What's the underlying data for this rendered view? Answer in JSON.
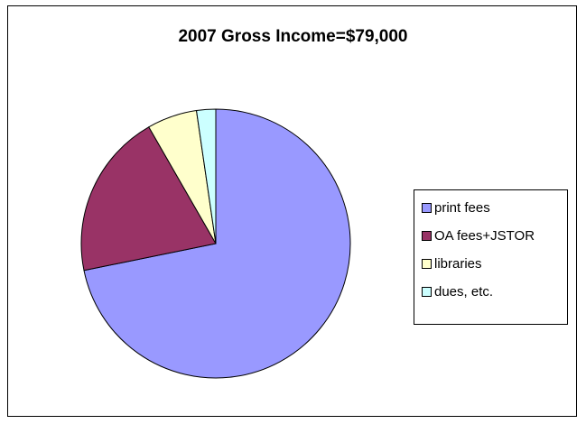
{
  "chart_data": {
    "type": "pie",
    "title": "2007 Gross Income=$79,000",
    "categories": [
      "print fees",
      "OA fees+JSTOR",
      "libraries",
      "dues, etc."
    ],
    "values": [
      71.8,
      19.9,
      6.0,
      2.3
    ],
    "colors": [
      "#9999ff",
      "#993366",
      "#ffffcc",
      "#ccffff"
    ],
    "legend_position": "right"
  }
}
